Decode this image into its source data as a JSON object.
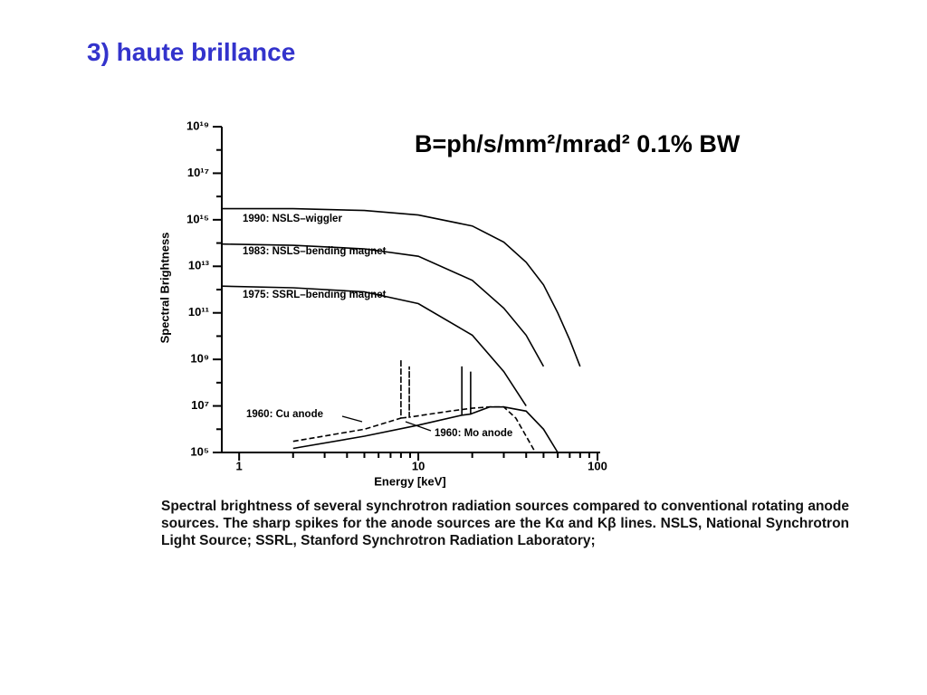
{
  "slide_title": "3) haute brillance",
  "formula": "B=ph/s/mm²/mrad² 0.1% BW",
  "caption": "Spectral brightness of several synchrotron radiation sources compared to conventional rotating anode sources. The sharp spikes for the anode sources are the Kα and Kβ lines. NSLS, National Synchrotron Light Source; SSRL, Stanford Synchrotron Radiation Laboratory;",
  "chart_data": {
    "type": "line",
    "x_label": "Energy [keV]",
    "y_label": "Spectral Brightness",
    "xscale": "log",
    "yscale": "log",
    "xlim": [
      0.8,
      100
    ],
    "ylim": [
      100000.0,
      1e+19
    ],
    "xticks": [
      1,
      10,
      100
    ],
    "xminor_ticks": [
      2,
      3,
      4,
      5,
      6,
      7,
      8,
      9,
      20,
      30,
      40,
      50,
      60,
      70,
      80,
      90
    ],
    "yticks": [
      {
        "value": 100000.0,
        "label": "10⁵"
      },
      {
        "value": 10000000.0,
        "label": "10⁷"
      },
      {
        "value": 1000000000.0,
        "label": "10⁹"
      },
      {
        "value": 100000000000.0,
        "label": "10¹¹"
      },
      {
        "value": 10000000000000.0,
        "label": "10¹³"
      },
      {
        "value": 1000000000000000.0,
        "label": "10¹⁵"
      },
      {
        "value": 1e+17,
        "label": "10¹⁷"
      },
      {
        "value": 1e+19,
        "label": "10¹⁹"
      }
    ],
    "yminor_ticks": [
      1000000.0,
      100000000.0,
      10000000000.0,
      1000000000000.0,
      100000000000000.0,
      1e+16,
      1e+18
    ],
    "series": [
      {
        "name": "1990: NSLS–wiggler",
        "color": "#000000",
        "dash": false,
        "x": [
          0.8,
          2,
          5,
          10,
          20,
          30,
          40,
          50,
          60,
          70,
          80
        ],
        "values": [
          3000000000000000.0,
          3000000000000000.0,
          2500000000000000.0,
          1600000000000000.0,
          540000000000000.0,
          110000000000000.0,
          15000000000000.0,
          1600000000000.0,
          100000000000.0,
          7000000000.0,
          500000000.0
        ]
      },
      {
        "name": "1983: NSLS–bending magnet",
        "color": "#000000",
        "dash": false,
        "x": [
          0.8,
          2,
          5,
          10,
          20,
          30,
          40,
          50
        ],
        "values": [
          90000000000000.0,
          80000000000000.0,
          56000000000000.0,
          27000000000000.0,
          2500000000000.0,
          160000000000.0,
          11000000000.0,
          500000000.0
        ]
      },
      {
        "name": "1975: SSRL–bending magnet",
        "color": "#000000",
        "dash": false,
        "x": [
          0.8,
          2,
          5,
          10,
          20,
          30,
          40
        ],
        "values": [
          1400000000000.0,
          1200000000000.0,
          800000000000.0,
          250000000000.0,
          11000000000.0,
          300000000.0,
          10000000.0
        ]
      },
      {
        "name": "1960: Cu anode",
        "color": "#000000",
        "dash": true,
        "x": [
          2,
          5,
          8,
          8,
          8,
          8.9,
          8.9,
          8.9,
          15,
          20,
          25,
          30,
          35,
          40,
          45
        ],
        "values": [
          300000.0,
          1000000.0,
          3000000.0,
          1000000000.0,
          3000000.0,
          3300000.0,
          500000000.0,
          3300000.0,
          6000000.0,
          8000000.0,
          9000000.0,
          9000000.0,
          3000000.0,
          500000.0,
          100000.0
        ]
      },
      {
        "name": "1960: Mo anode",
        "color": "#000000",
        "dash": false,
        "x": [
          2,
          5,
          10,
          17.5,
          17.5,
          17.5,
          19.6,
          19.6,
          19.6,
          25,
          30,
          40,
          50,
          60
        ],
        "values": [
          150000.0,
          500000.0,
          1500000.0,
          4000000.0,
          500000000.0,
          4000000.0,
          4500000.0,
          300000000.0,
          4500000.0,
          9000000.0,
          9000000.0,
          6000000.0,
          1000000.0,
          100000.0
        ]
      }
    ]
  }
}
